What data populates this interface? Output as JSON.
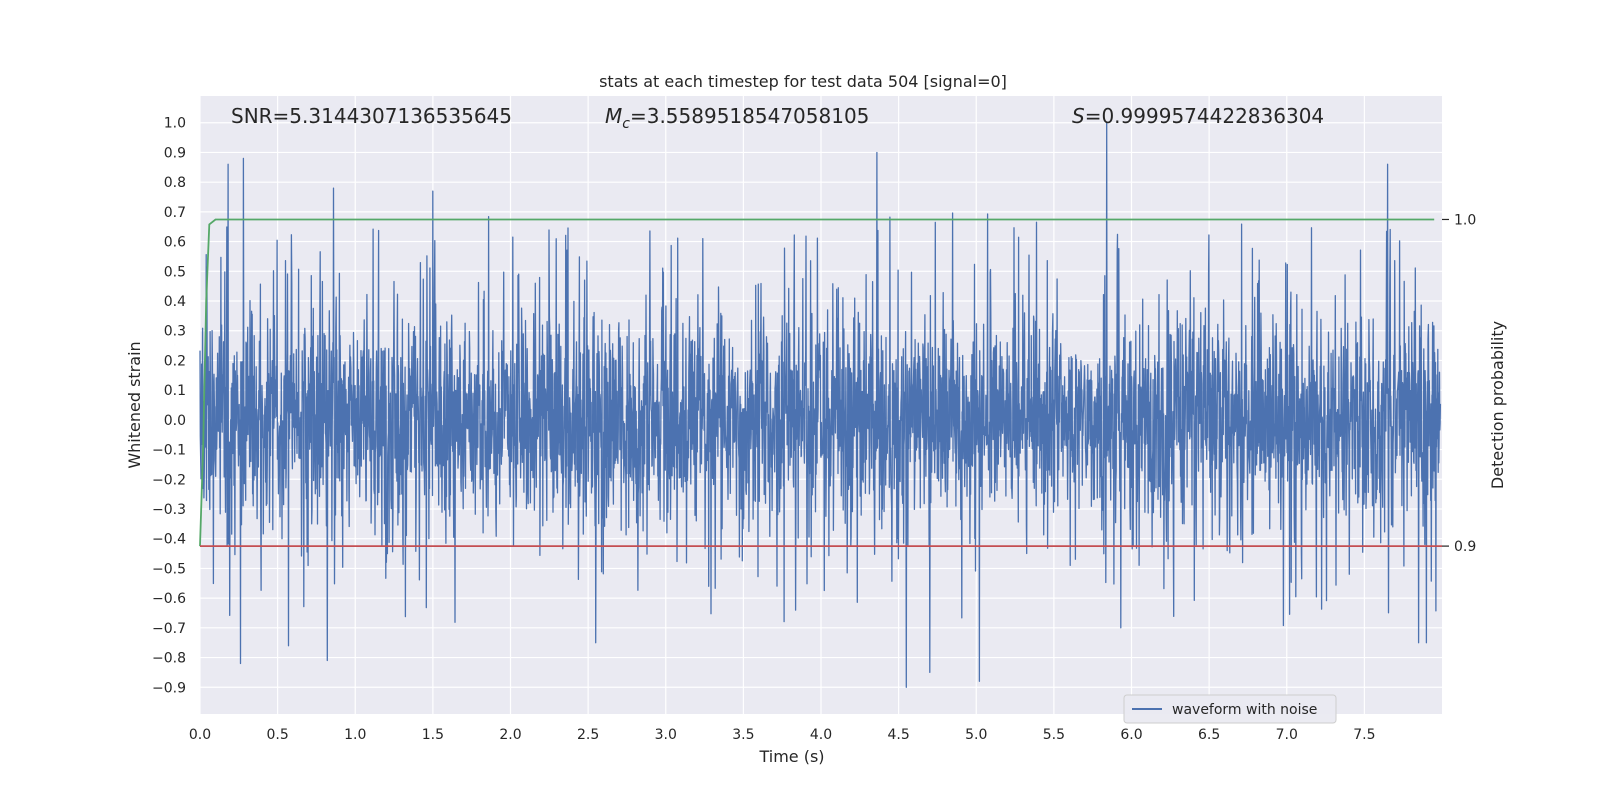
{
  "chart_data": {
    "type": "line",
    "title": "stats at each timestep for test data 504 [signal=0]",
    "xlabel": "Time (s)",
    "ylabel": "Whitened strain",
    "y2label": "Detection probability",
    "xlim": [
      0.0,
      8.0
    ],
    "ylim": [
      -0.99,
      1.09
    ],
    "y2lim": [
      0.8486,
      1.0378
    ],
    "x_ticks": [
      0.0,
      0.5,
      1.0,
      1.5,
      2.0,
      2.5,
      3.0,
      3.5,
      4.0,
      4.5,
      5.0,
      5.5,
      6.0,
      6.5,
      7.0,
      7.5
    ],
    "x_tick_labels": [
      "0.0",
      "0.5",
      "1.0",
      "1.5",
      "2.0",
      "2.5",
      "3.0",
      "3.5",
      "4.0",
      "4.5",
      "5.0",
      "5.5",
      "6.0",
      "6.5",
      "7.0",
      "7.5"
    ],
    "y_ticks": [
      -0.9,
      -0.8,
      -0.7,
      -0.6,
      -0.5,
      -0.4,
      -0.3,
      -0.2,
      -0.1,
      0.0,
      0.1,
      0.2,
      0.3,
      0.4,
      0.5,
      0.6,
      0.7,
      0.8,
      0.9,
      1.0
    ],
    "y_tick_labels": [
      "−0.9",
      "−0.8",
      "−0.7",
      "−0.6",
      "−0.5",
      "−0.4",
      "−0.3",
      "−0.2",
      "−0.1",
      "0.0",
      "0.1",
      "0.2",
      "0.3",
      "0.4",
      "0.5",
      "0.6",
      "0.7",
      "0.8",
      "0.9",
      "1.0"
    ],
    "y2_ticks": [
      0.9,
      1.0
    ],
    "y2_tick_labels": [
      "0.9",
      "1.0"
    ],
    "grid": true,
    "legend_position": "bottom-right",
    "annotations": {
      "snr": "SNR=5.3144307136535645",
      "mc_symbol": "M",
      "mc_subscript": "c",
      "mc_value": "=3.5589518547058105",
      "s_symbol": "S",
      "s_value": "=0.9999574422836304"
    },
    "series": [
      {
        "name": "waveform with noise",
        "kind": "noise",
        "color": "#4c72b0",
        "y_range": [
          -0.9,
          1.0
        ],
        "x_range": [
          0.0,
          7.99
        ],
        "spikes": [
          [
            0.18,
            0.86
          ],
          [
            0.28,
            0.88
          ],
          [
            0.26,
            -0.82
          ],
          [
            0.57,
            -0.76
          ],
          [
            0.82,
            -0.81
          ],
          [
            0.86,
            0.78
          ],
          [
            1.5,
            0.77
          ],
          [
            2.55,
            -0.75
          ],
          [
            4.36,
            0.9
          ],
          [
            4.55,
            -0.9
          ],
          [
            4.7,
            -0.85
          ],
          [
            5.02,
            -0.88
          ],
          [
            5.84,
            1.0
          ],
          [
            5.93,
            -0.7
          ],
          [
            7.65,
            0.86
          ],
          [
            7.85,
            -0.75
          ],
          [
            7.9,
            -0.75
          ]
        ]
      },
      {
        "name": "",
        "kind": "probability",
        "color": "#55a868",
        "points": [
          [
            0.0,
            0.9
          ],
          [
            0.02,
            0.93
          ],
          [
            0.04,
            0.975
          ],
          [
            0.06,
            0.9985
          ],
          [
            0.1,
            1.0
          ],
          [
            7.95,
            1.0
          ]
        ]
      },
      {
        "name": "",
        "kind": "threshold",
        "color": "#c44e52",
        "value": 0.9
      }
    ]
  }
}
